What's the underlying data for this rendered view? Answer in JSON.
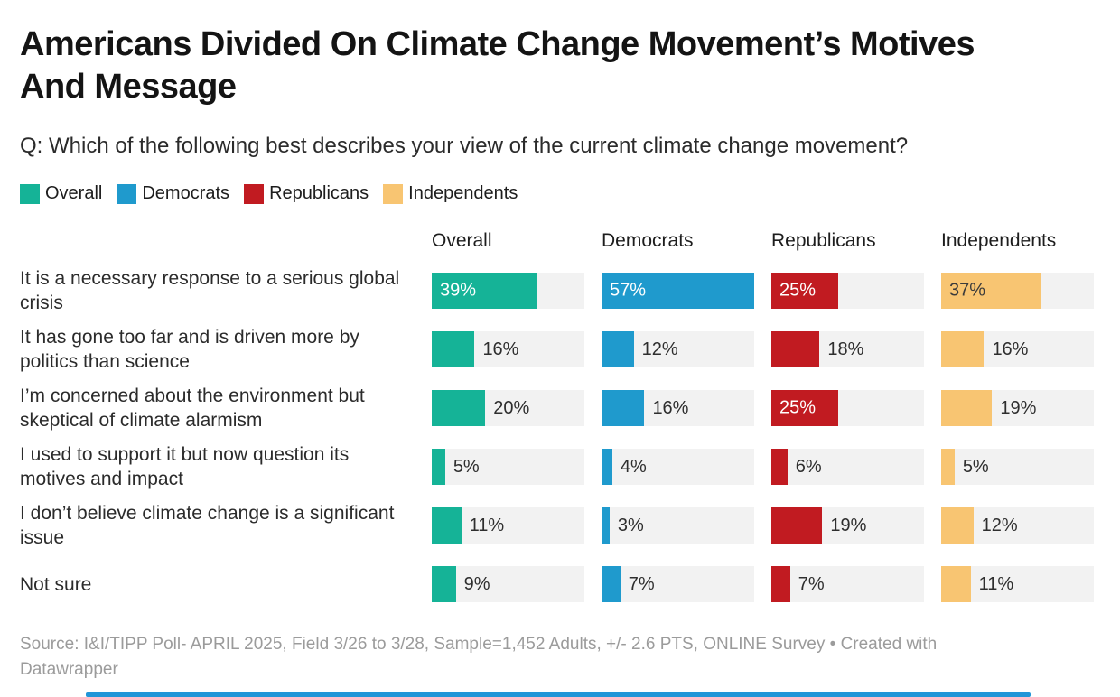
{
  "title": {
    "line1": "Americans Divided On Climate Change Movement’s Motives",
    "line2": "And Message"
  },
  "question": "Q: Which of the following best describes your view of the current climate change movement?",
  "legend": [
    {
      "label": "Overall",
      "color": "#15b397"
    },
    {
      "label": "Democrats",
      "color": "#1f9acd"
    },
    {
      "label": "Republicans",
      "color": "#c11b21"
    },
    {
      "label": "Independents",
      "color": "#f8c572"
    }
  ],
  "columns": [
    "Overall",
    "Democrats",
    "Republicans",
    "Independents"
  ],
  "chart_data": {
    "type": "bar",
    "title": "Americans Divided On Climate Change Movement’s Motives And Message",
    "subtitle": "Q: Which of the following best describes your view of the current climate change movement?",
    "categories": [
      "It is a necessary response to a serious global crisis",
      "It has gone too far and is driven more by politics than science",
      "I’m concerned about the environment but skeptical of climate alarmism",
      "I used to support it but now question its motives and impact",
      "I don’t believe climate change is a significant issue",
      "Not sure"
    ],
    "series": [
      {
        "name": "Overall",
        "color": "#15b397",
        "inside_label_color": "#ffffff",
        "values": [
          39,
          16,
          20,
          5,
          11,
          9
        ]
      },
      {
        "name": "Democrats",
        "color": "#1f9acd",
        "inside_label_color": "#ffffff",
        "values": [
          57,
          12,
          16,
          4,
          3,
          7
        ]
      },
      {
        "name": "Republicans",
        "color": "#c11b21",
        "inside_label_color": "#ffffff",
        "values": [
          25,
          18,
          25,
          6,
          19,
          7
        ]
      },
      {
        "name": "Independents",
        "color": "#f8c572",
        "inside_label_color": "#3b3b3b",
        "values": [
          37,
          16,
          19,
          5,
          12,
          11
        ]
      }
    ],
    "value_suffix": "%",
    "scale_max": 57,
    "inside_label_min": 25,
    "track_color": "#f2f2f2",
    "legend_position": "top",
    "grid": false
  },
  "footer": {
    "line1": "Source: I&I/TIPP Poll- APRIL 2025, Field 3/26 to 3/28, Sample=1,452 Adults, +/- 2.6 PTS, ONLINE Survey • Created with",
    "line2": "Datawrapper"
  }
}
